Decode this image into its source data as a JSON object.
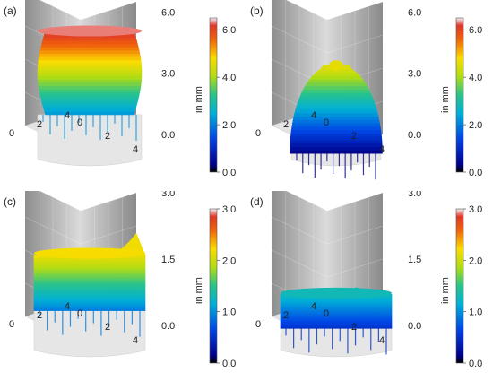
{
  "chart_data": [
    {
      "type": "surface",
      "panel_label": "(a)",
      "z_ticks": [
        "0.0",
        "3.0",
        "6.0"
      ],
      "x_ticks": [
        "0",
        "2",
        "4"
      ],
      "y_ticks": [
        "0",
        "2",
        "4"
      ],
      "zlim": [
        0,
        6.5
      ],
      "colorbar": {
        "label": "in mm",
        "ticks": [
          "0.0",
          "2.0",
          "4.0",
          "6.0"
        ],
        "range": [
          0,
          6.5
        ]
      },
      "shape": "cap",
      "surface_z": {
        "bottom": 2.2,
        "top": 6.3
      },
      "grid": true
    },
    {
      "type": "surface",
      "panel_label": "(b)",
      "z_ticks": [
        "0.0",
        "3.0",
        "6.0"
      ],
      "x_ticks": [
        "0",
        "2",
        "4"
      ],
      "y_ticks": [
        "0",
        "2",
        "4"
      ],
      "zlim": [
        0,
        6.5
      ],
      "colorbar": {
        "label": "in mm",
        "ticks": [
          "0.0",
          "2.0",
          "4.0",
          "6.0"
        ],
        "range": [
          0,
          6.5
        ]
      },
      "shape": "leaf",
      "surface_z": {
        "bottom": 0.3,
        "top": 4.6
      },
      "grid": true
    },
    {
      "type": "surface",
      "panel_label": "(c)",
      "z_ticks": [
        "0.0",
        "1.5",
        "3.0"
      ],
      "x_ticks": [
        "0",
        "2",
        "4"
      ],
      "y_ticks": [
        "0",
        "2",
        "4"
      ],
      "zlim": [
        0,
        3.0
      ],
      "colorbar": {
        "label": "in mm",
        "ticks": [
          "0.0",
          "1.0",
          "2.0",
          "3.0"
        ],
        "range": [
          0,
          3.0
        ]
      },
      "shape": "wavy",
      "surface_z": {
        "bottom": 0.9,
        "top": 2.2
      },
      "grid": true
    },
    {
      "type": "surface",
      "panel_label": "(d)",
      "z_ticks": [
        "0.0",
        "1.5",
        "3.0"
      ],
      "x_ticks": [
        "0",
        "2",
        "4"
      ],
      "y_ticks": [
        "0",
        "2",
        "4"
      ],
      "zlim": [
        0,
        3.0
      ],
      "colorbar": {
        "label": "in mm",
        "ticks": [
          "0.0",
          "1.0",
          "2.0",
          "3.0"
        ],
        "range": [
          0,
          3.0
        ]
      },
      "shape": "flat",
      "surface_z": {
        "bottom": 0.5,
        "top": 1.3
      },
      "grid": true
    }
  ]
}
